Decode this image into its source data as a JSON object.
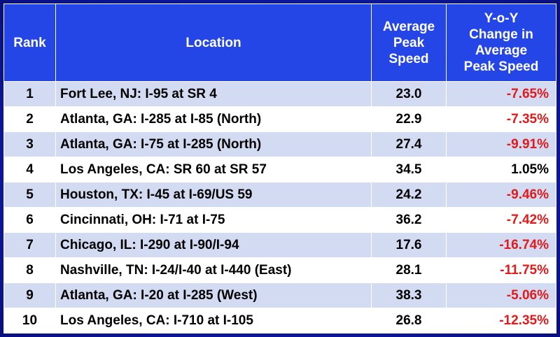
{
  "chart_data": {
    "type": "table",
    "columns": [
      "Rank",
      "Location",
      "Average Peak Speed",
      "Y-o-Y Change in Average Peak Speed"
    ],
    "header_lines": {
      "rank": [
        "Rank"
      ],
      "location": [
        "Location"
      ],
      "speed": [
        "Average",
        "Peak",
        "Speed"
      ],
      "change": [
        "Y-o-Y",
        "Change in",
        "Average",
        "Peak Speed"
      ]
    },
    "rows": [
      {
        "rank": "1",
        "location": "Fort Lee, NJ: I-95 at SR 4",
        "speed": "23.0",
        "change": "-7.65%"
      },
      {
        "rank": "2",
        "location": "Atlanta, GA: I-285 at I-85 (North)",
        "speed": "22.9",
        "change": "-7.35%"
      },
      {
        "rank": "3",
        "location": "Atlanta, GA: I-75 at I-285 (North)",
        "speed": "27.4",
        "change": "-9.91%"
      },
      {
        "rank": "4",
        "location": "Los Angeles, CA: SR 60 at SR 57",
        "speed": "34.5",
        "change": "1.05%"
      },
      {
        "rank": "5",
        "location": "Houston, TX: I-45 at I-69/US 59",
        "speed": "24.2",
        "change": "-9.46%"
      },
      {
        "rank": "6",
        "location": "Cincinnati, OH: I-71 at I-75",
        "speed": "36.2",
        "change": "-7.42%"
      },
      {
        "rank": "7",
        "location": "Chicago, IL: I-290 at I-90/I-94",
        "speed": "17.6",
        "change": "-16.74%"
      },
      {
        "rank": "8",
        "location": "Nashville, TN: I-24/I-40 at I-440 (East)",
        "speed": "28.1",
        "change": "-11.75%"
      },
      {
        "rank": "9",
        "location": "Atlanta, GA: I-20 at I-285 (West)",
        "speed": "38.3",
        "change": "-5.06%"
      },
      {
        "rank": "10",
        "location": "Los Angeles, CA: I-710 at I-105",
        "speed": "26.8",
        "change": "-12.35%"
      }
    ]
  },
  "colors": {
    "header_bg": "#2546e6",
    "header_text": "#ffffff",
    "row_alt": "#d3dbf3",
    "row_plain": "#ffffff",
    "negative": "#e21a1a",
    "background": "#1225c0"
  }
}
